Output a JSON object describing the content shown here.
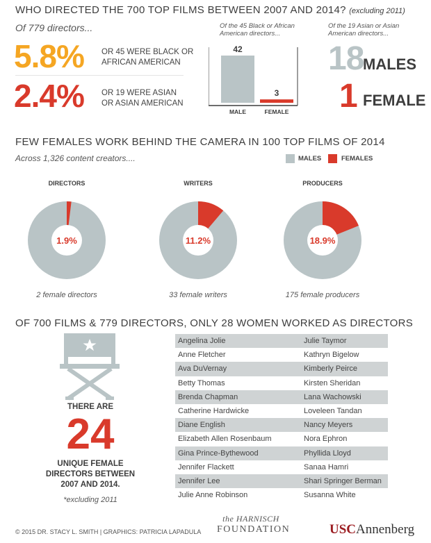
{
  "colors": {
    "orange": "#f5a623",
    "red": "#d93a2b",
    "gray": "#b9c4c6",
    "dark": "#3d3d3d",
    "row_gray": "#cfd3d4"
  },
  "top": {
    "title": "WHO DIRECTED THE 700 TOP FILMS BETWEEN 2007 AND 2014?",
    "title_note": "(excluding 2011)",
    "intro": "Of 779 directors...",
    "stat1_pct": "5.8%",
    "stat1_desc_line1": "OR 45 WERE BLACK OR",
    "stat1_desc_line2": "AFRICAN AMERICAN",
    "stat2_pct": "2.4%",
    "stat2_desc_line1": "OR 19 WERE ASIAN",
    "stat2_desc_line2": "OR ASIAN AMERICAN",
    "bar_caption_line1": "Of the 45 Black or African",
    "bar_caption_line2": "American directors...",
    "asian_caption_line1": "Of the 19 Asian or Asian",
    "asian_caption_line2": "American directors...",
    "males_count": "18",
    "males_label": "MALES",
    "female_count": "1",
    "female_label": "FEMALE"
  },
  "middle": {
    "title": "FEW FEMALES WORK BEHIND THE CAMERA IN 100 TOP FILMS OF 2014",
    "subtitle": "Across 1,326 content creators....",
    "legend_males": "MALES",
    "legend_females": "FEMALES"
  },
  "bottom": {
    "title": "OF 700 FILMS & 779 DIRECTORS, ONLY 28 WOMEN WORKED AS DIRECTORS",
    "there_are": "THERE ARE",
    "big_number": "24",
    "desc_line1": "UNIQUE FEMALE",
    "desc_line2": "DIRECTORS BETWEEN",
    "desc_line3": "2007 AND 2014.",
    "note": "*excluding 2011",
    "names_left": [
      "Angelina Jolie",
      "Anne Fletcher",
      "Ava DuVernay",
      "Betty Thomas",
      "Brenda Chapman",
      "Catherine Hardwicke",
      "Diane English",
      "Elizabeth Allen Rosenbaum",
      "Gina Prince-Bythewood",
      "Jennifer Flackett",
      "Jennifer Lee",
      "Julie Anne Robinson"
    ],
    "names_right": [
      "Julie Taymor",
      "Kathryn Bigelow",
      "Kimberly Peirce",
      "Kirsten Sheridan",
      "Lana Wachowski",
      "Loveleen Tandan",
      "Nancy Meyers",
      "Nora Ephron",
      "Phyllida Lloyd",
      "Sanaa Hamri",
      "Shari Springer Berman",
      "Susanna White"
    ]
  },
  "footer": {
    "credit": "© 2015 DR. STACY L. SMITH | GRAPHICS: PATRICIA LAPADULA",
    "logo1_line1": "the HARNISCH",
    "logo1_line2": "FOUNDATION",
    "logo2_usc": "USC",
    "logo2_annenberg": "Annenberg"
  },
  "chart_data": [
    {
      "type": "bar",
      "categories": [
        "MALE",
        "FEMALE"
      ],
      "values": [
        42,
        3
      ],
      "title": "Of the 45 Black or African American directors...",
      "ylim": [
        0,
        42
      ]
    },
    {
      "type": "pie",
      "title": "DIRECTORS",
      "labels": [
        "MALES",
        "FEMALES"
      ],
      "values": [
        98.1,
        1.9
      ],
      "center_label": "1.9%",
      "caption": "2 female directors"
    },
    {
      "type": "pie",
      "title": "WRITERS",
      "labels": [
        "MALES",
        "FEMALES"
      ],
      "values": [
        88.8,
        11.2
      ],
      "center_label": "11.2%",
      "caption": "33 female writers"
    },
    {
      "type": "pie",
      "title": "PRODUCERS",
      "labels": [
        "MALES",
        "FEMALES"
      ],
      "values": [
        81.1,
        18.9
      ],
      "center_label": "18.9%",
      "caption": "175 female producers"
    }
  ]
}
